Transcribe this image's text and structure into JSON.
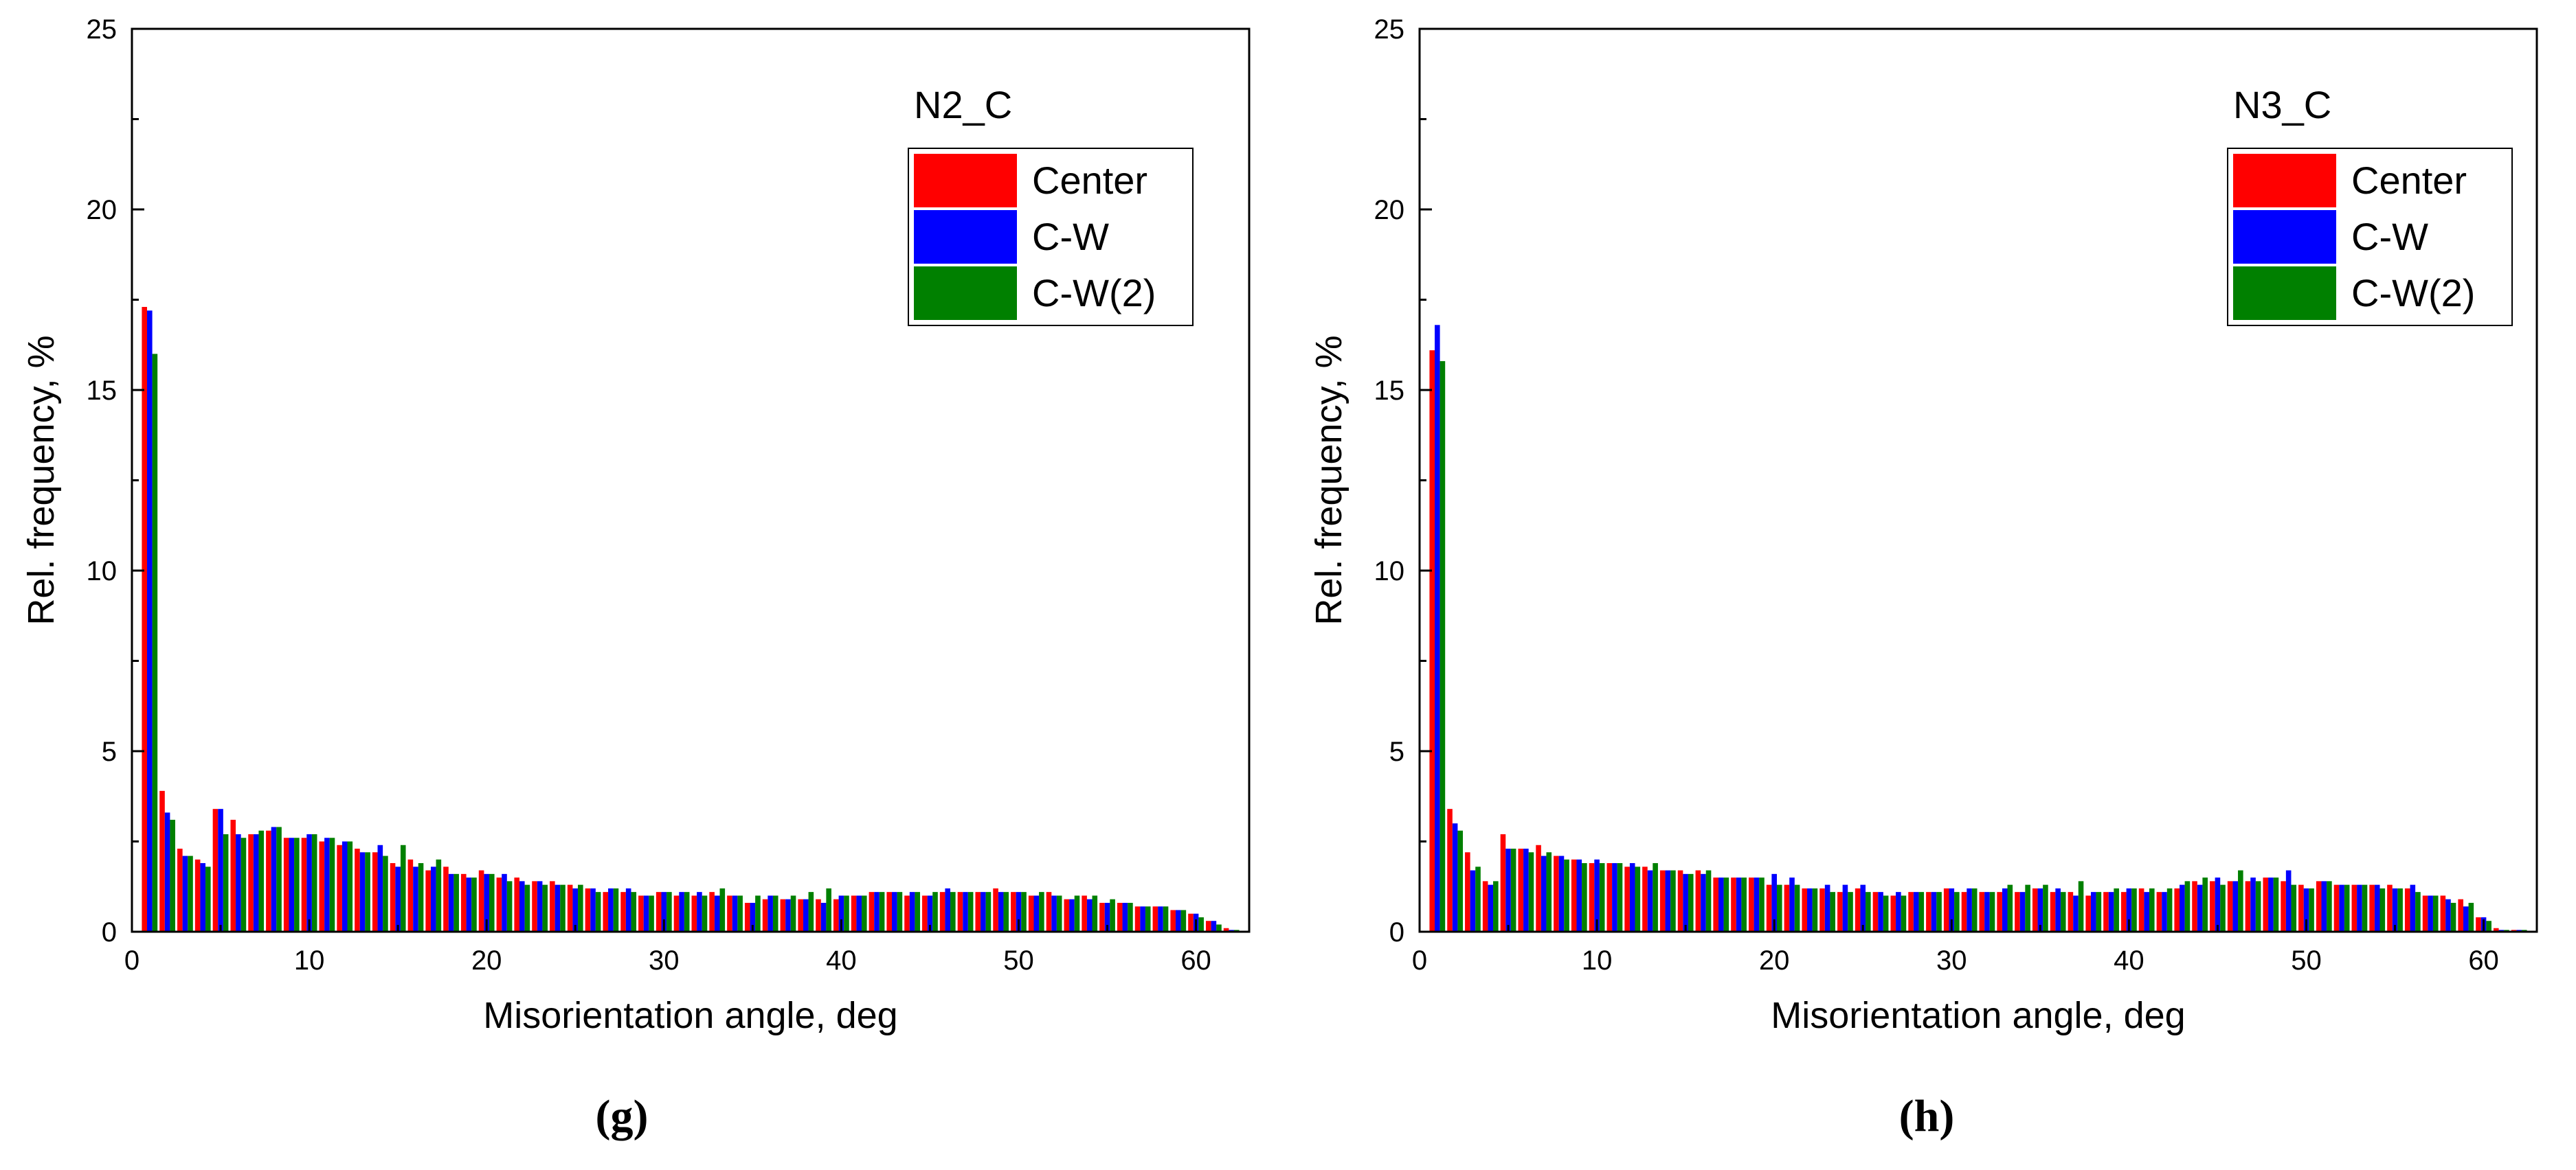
{
  "chart_data": [
    {
      "type": "bar",
      "caption": "(g)",
      "legend_title": "N2_C",
      "legend_position": "top-right",
      "xlabel": "Misorientation angle, deg",
      "ylabel": "Rel. frequency, %",
      "xlim": [
        0,
        63
      ],
      "ylim": [
        0,
        25
      ],
      "xticks": [
        0,
        10,
        20,
        30,
        40,
        50,
        60
      ],
      "yticks": [
        0,
        5,
        10,
        15,
        20,
        25
      ],
      "grid": false,
      "x": [
        1,
        2,
        3,
        4,
        5,
        6,
        7,
        8,
        9,
        10,
        11,
        12,
        13,
        14,
        15,
        16,
        17,
        18,
        19,
        20,
        21,
        22,
        23,
        24,
        25,
        26,
        27,
        28,
        29,
        30,
        31,
        32,
        33,
        34,
        35,
        36,
        37,
        38,
        39,
        40,
        41,
        42,
        43,
        44,
        45,
        46,
        47,
        48,
        49,
        50,
        51,
        52,
        53,
        54,
        55,
        56,
        57,
        58,
        59,
        60,
        61,
        62
      ],
      "series": [
        {
          "name": "Center",
          "color": "#ff0000",
          "values": [
            17.3,
            3.9,
            2.3,
            2.0,
            3.4,
            3.1,
            2.7,
            2.8,
            2.6,
            2.6,
            2.5,
            2.4,
            2.3,
            2.2,
            1.9,
            2.0,
            1.7,
            1.8,
            1.6,
            1.7,
            1.5,
            1.5,
            1.4,
            1.4,
            1.3,
            1.2,
            1.1,
            1.1,
            1.0,
            1.1,
            1.0,
            1.0,
            1.1,
            1.0,
            0.8,
            0.9,
            0.9,
            0.9,
            0.9,
            0.9,
            1.0,
            1.1,
            1.1,
            1.0,
            1.0,
            1.1,
            1.1,
            1.1,
            1.2,
            1.1,
            1.0,
            1.1,
            0.9,
            1.0,
            0.8,
            0.8,
            0.7,
            0.7,
            0.6,
            0.5,
            0.3,
            0.1
          ]
        },
        {
          "name": "C-W",
          "color": "#0000ff",
          "values": [
            17.2,
            3.3,
            2.1,
            1.9,
            3.4,
            2.7,
            2.7,
            2.9,
            2.6,
            2.7,
            2.6,
            2.5,
            2.2,
            2.4,
            1.8,
            1.8,
            1.8,
            1.6,
            1.5,
            1.6,
            1.6,
            1.4,
            1.4,
            1.3,
            1.2,
            1.2,
            1.2,
            1.2,
            1.0,
            1.1,
            1.1,
            1.1,
            1.0,
            1.0,
            0.8,
            1.0,
            0.9,
            0.9,
            0.8,
            1.0,
            1.0,
            1.1,
            1.1,
            1.1,
            1.0,
            1.2,
            1.1,
            1.1,
            1.1,
            1.1,
            1.0,
            1.0,
            0.9,
            0.9,
            0.8,
            0.8,
            0.7,
            0.7,
            0.6,
            0.5,
            0.3,
            0.05
          ]
        },
        {
          "name": "C-W(2)",
          "color": "#008000",
          "values": [
            16.0,
            3.1,
            2.1,
            1.8,
            2.7,
            2.6,
            2.8,
            2.9,
            2.6,
            2.7,
            2.6,
            2.5,
            2.2,
            2.1,
            2.4,
            1.9,
            2.0,
            1.6,
            1.5,
            1.6,
            1.4,
            1.3,
            1.3,
            1.3,
            1.3,
            1.1,
            1.2,
            1.1,
            1.0,
            1.1,
            1.1,
            1.0,
            1.2,
            1.0,
            1.0,
            1.0,
            1.0,
            1.1,
            1.2,
            1.0,
            1.0,
            1.1,
            1.1,
            1.1,
            1.1,
            1.1,
            1.1,
            1.1,
            1.1,
            1.1,
            1.1,
            1.0,
            1.0,
            1.0,
            0.9,
            0.8,
            0.7,
            0.7,
            0.6,
            0.4,
            0.2,
            0.05
          ]
        }
      ]
    },
    {
      "type": "bar",
      "caption": "(h)",
      "legend_title": "N3_C",
      "legend_position": "top-right",
      "xlabel": "Misorientation angle, deg",
      "ylabel": "Rel. frequency, %",
      "xlim": [
        0,
        63
      ],
      "ylim": [
        0,
        25
      ],
      "xticks": [
        0,
        10,
        20,
        30,
        40,
        50,
        60
      ],
      "yticks": [
        0,
        5,
        10,
        15,
        20,
        25
      ],
      "grid": false,
      "x": [
        1,
        2,
        3,
        4,
        5,
        6,
        7,
        8,
        9,
        10,
        11,
        12,
        13,
        14,
        15,
        16,
        17,
        18,
        19,
        20,
        21,
        22,
        23,
        24,
        25,
        26,
        27,
        28,
        29,
        30,
        31,
        32,
        33,
        34,
        35,
        36,
        37,
        38,
        39,
        40,
        41,
        42,
        43,
        44,
        45,
        46,
        47,
        48,
        49,
        50,
        51,
        52,
        53,
        54,
        55,
        56,
        57,
        58,
        59,
        60,
        61,
        62
      ],
      "series": [
        {
          "name": "Center",
          "color": "#ff0000",
          "values": [
            16.1,
            3.4,
            2.2,
            1.4,
            2.7,
            2.3,
            2.4,
            2.1,
            2.0,
            1.9,
            1.9,
            1.8,
            1.8,
            1.7,
            1.7,
            1.7,
            1.5,
            1.5,
            1.5,
            1.3,
            1.3,
            1.2,
            1.2,
            1.1,
            1.2,
            1.1,
            1.0,
            1.1,
            1.1,
            1.2,
            1.1,
            1.1,
            1.1,
            1.1,
            1.2,
            1.1,
            1.1,
            1.0,
            1.1,
            1.1,
            1.2,
            1.1,
            1.2,
            1.4,
            1.4,
            1.4,
            1.4,
            1.5,
            1.4,
            1.3,
            1.4,
            1.3,
            1.3,
            1.3,
            1.3,
            1.2,
            1.0,
            1.0,
            0.9,
            0.4,
            0.1,
            0.05
          ]
        },
        {
          "name": "C-W",
          "color": "#0000ff",
          "values": [
            16.8,
            3.0,
            1.7,
            1.3,
            2.3,
            2.3,
            2.1,
            2.1,
            2.0,
            2.0,
            1.9,
            1.9,
            1.7,
            1.7,
            1.6,
            1.6,
            1.5,
            1.5,
            1.5,
            1.6,
            1.5,
            1.2,
            1.3,
            1.3,
            1.3,
            1.1,
            1.1,
            1.1,
            1.1,
            1.2,
            1.2,
            1.1,
            1.2,
            1.1,
            1.2,
            1.2,
            1.0,
            1.1,
            1.1,
            1.2,
            1.1,
            1.1,
            1.3,
            1.3,
            1.5,
            1.4,
            1.5,
            1.5,
            1.7,
            1.2,
            1.4,
            1.3,
            1.3,
            1.3,
            1.2,
            1.3,
            1.0,
            0.9,
            0.7,
            0.4,
            0.05,
            0.05
          ]
        },
        {
          "name": "C-W(2)",
          "color": "#008000",
          "values": [
            15.8,
            2.8,
            1.8,
            1.4,
            2.3,
            2.2,
            2.2,
            2.0,
            1.9,
            1.9,
            1.9,
            1.8,
            1.9,
            1.7,
            1.6,
            1.7,
            1.5,
            1.5,
            1.5,
            1.3,
            1.3,
            1.2,
            1.1,
            1.1,
            1.1,
            1.0,
            1.0,
            1.1,
            1.1,
            1.1,
            1.2,
            1.1,
            1.3,
            1.3,
            1.3,
            1.1,
            1.4,
            1.1,
            1.2,
            1.2,
            1.2,
            1.2,
            1.4,
            1.5,
            1.3,
            1.7,
            1.4,
            1.5,
            1.3,
            1.2,
            1.4,
            1.3,
            1.3,
            1.2,
            1.2,
            1.1,
            1.0,
            0.8,
            0.8,
            0.3,
            0.05,
            0.05
          ]
        }
      ]
    }
  ]
}
